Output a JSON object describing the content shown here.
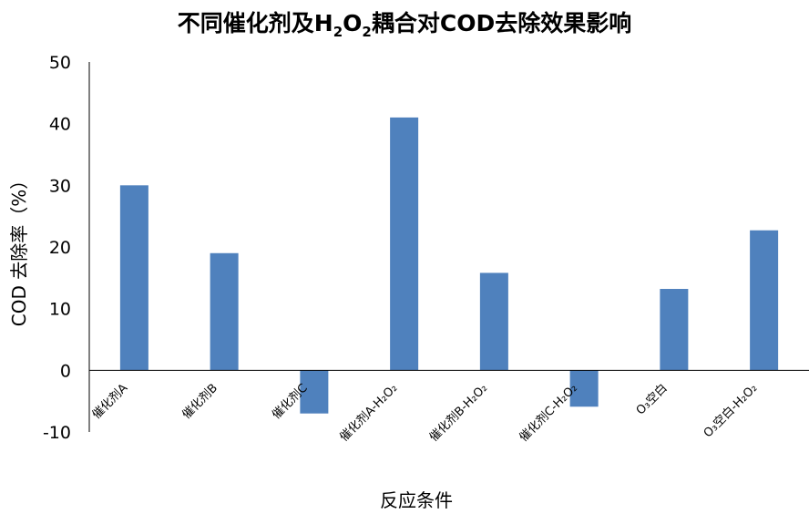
{
  "chart_data": {
    "type": "bar",
    "title_parts": [
      "不同催化剂及H",
      "2",
      "O",
      "2",
      "耦合对COD去除效果影响"
    ],
    "ylabel": "COD 去除率（%）",
    "xlabel": "反应条件",
    "ylim": [
      -10,
      50
    ],
    "yticks": [
      -10,
      0,
      10,
      20,
      30,
      40,
      50
    ],
    "categories": [
      "催化剂A",
      "催化剂B",
      "催化剂C",
      "催化剂A-H₂O₂",
      "催化剂B-H₂O₂",
      "催化剂C-H₂O₂",
      "O₃空白",
      "O₃空白-H₂O₂"
    ],
    "values": [
      30,
      19,
      -7,
      41,
      15.8,
      -5.9,
      13.2,
      22.7
    ],
    "bar_color": "#4f81bd",
    "grid": false,
    "legend": "none"
  }
}
